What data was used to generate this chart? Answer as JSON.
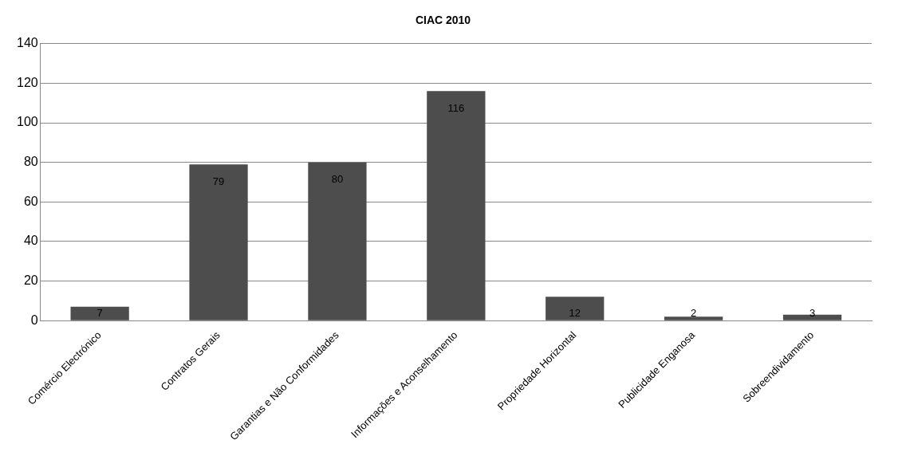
{
  "chart_data": {
    "type": "bar",
    "title": "CIAC 2010",
    "categories": [
      "Comércio Electrónico",
      "Contratos Gerais",
      "Garantias e Não Conformidades",
      "Informações e Aconselhamento",
      "Propriedade Horizontal",
      "Publicidade Enganosa",
      "Sobreendividamento"
    ],
    "values": [
      7,
      79,
      80,
      116,
      12,
      2,
      3
    ],
    "color": "#4d4d4d",
    "ylim": [
      0,
      140
    ],
    "yticks": [
      0,
      20,
      40,
      60,
      80,
      100,
      120,
      140
    ],
    "grid": "y",
    "data_labels": true,
    "legend": false
  }
}
